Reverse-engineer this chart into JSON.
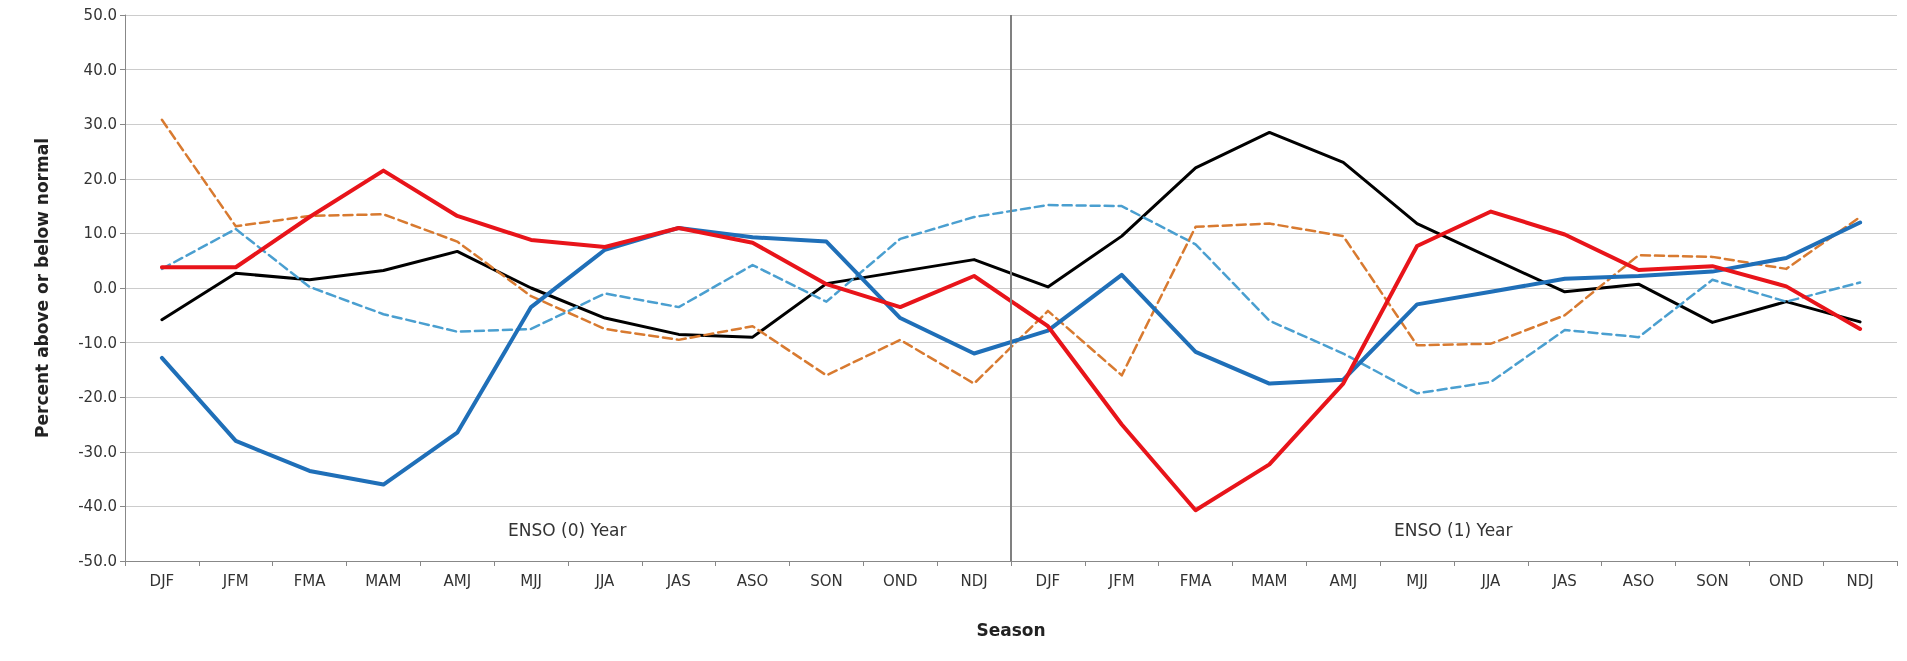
{
  "chart_data": {
    "type": "line",
    "xlabel": "Season",
    "ylabel": "Percent above or below normal",
    "categories": [
      "DJF",
      "JFM",
      "FMA",
      "MAM",
      "AMJ",
      "MJJ",
      "JJA",
      "JAS",
      "ASO",
      "SON",
      "OND",
      "NDJ",
      "DJF",
      "JFM",
      "FMA",
      "MAM",
      "AMJ",
      "MJJ",
      "JJA",
      "JAS",
      "ASO",
      "SON",
      "OND",
      "NDJ"
    ],
    "ylim": [
      -50,
      50
    ],
    "yticks": [
      {
        "value": -50,
        "label": "-50.0"
      },
      {
        "value": -40,
        "label": "-40.0"
      },
      {
        "value": -30,
        "label": "-30.0"
      },
      {
        "value": -20,
        "label": "-20.0"
      },
      {
        "value": -10,
        "label": "-10.0"
      },
      {
        "value": 0,
        "label": "0.0"
      },
      {
        "value": 10,
        "label": "10.0"
      },
      {
        "value": 20,
        "label": "20.0"
      },
      {
        "value": 30,
        "label": "30.0"
      },
      {
        "value": 40,
        "label": "40.0"
      },
      {
        "value": 50,
        "label": "50.0"
      }
    ],
    "grid": "y",
    "marker": "none",
    "series": [
      {
        "color": "#000000",
        "line_style": "solid",
        "values": [
          -5.8,
          2.7,
          1.5,
          3.2,
          6.7,
          0,
          -5.5,
          -8.5,
          -9,
          0.8,
          3,
          5.2,
          0.2,
          9.5,
          22,
          28.5,
          23,
          11.8,
          5.5,
          -0.7,
          0.7,
          -6.3,
          -2.5,
          -6.2
        ]
      },
      {
        "color": "#4a9fd0",
        "line_style": "dashed",
        "values": [
          3.5,
          10.8,
          0.2,
          -4.8,
          -8,
          -7.5,
          -1,
          -3.5,
          4.2,
          -2.5,
          9,
          13,
          15.2,
          15,
          8,
          -6,
          -12,
          -19.3,
          -17.2,
          -7.7,
          -9,
          1.5,
          -2.5,
          1
        ]
      },
      {
        "color": "#d87a30",
        "line_style": "dashed",
        "values": [
          30.8,
          11.3,
          13.2,
          13.5,
          8.5,
          -1.5,
          -7.5,
          -9.5,
          -7,
          -16,
          -9.5,
          -17.5,
          -4.2,
          -16,
          11.2,
          11.8,
          9.5,
          -10.5,
          -10.2,
          -5,
          6,
          5.7,
          3.5,
          13
        ]
      },
      {
        "color": "#1f6fb8",
        "line_style": "solid",
        "values": [
          -12.8,
          -28,
          -33.5,
          -36,
          -26.5,
          -3.5,
          7,
          11,
          9.3,
          8.5,
          -5.5,
          -12,
          -7.8,
          2.4,
          -11.7,
          -17.5,
          -16.8,
          -3,
          -0.7,
          1.7,
          2.2,
          3,
          5.5,
          12
        ]
      },
      {
        "color": "#e8141a",
        "line_style": "solid",
        "values": [
          3.8,
          3.8,
          13,
          21.5,
          13.2,
          8.8,
          7.5,
          11,
          8.3,
          0.7,
          -3.5,
          2.2,
          -7,
          -25,
          -40.7,
          -32.3,
          -17.5,
          7.7,
          14,
          9.8,
          3.3,
          4,
          0.3,
          -7.5
        ]
      }
    ],
    "ref_lines": [
      {
        "axis": "x",
        "value": "NDJ",
        "color": "#808080"
      }
    ],
    "annotations": [
      "ENSO (0) Year",
      "ENSO (1) Year"
    ]
  }
}
